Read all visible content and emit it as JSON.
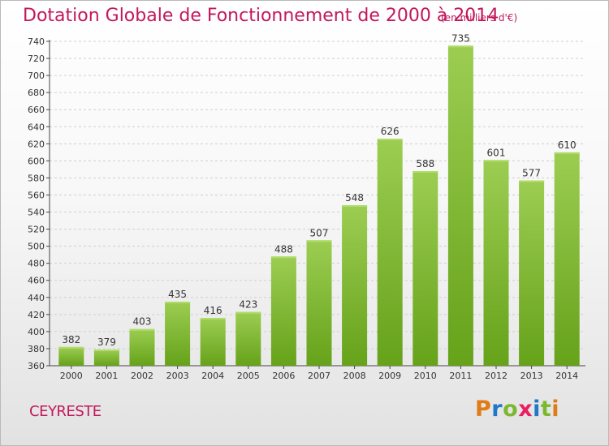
{
  "header": {
    "title": "Dotation Globale de Fonctionnement de 2000 à 2014",
    "unit_note": "(en milliers d'€)"
  },
  "footer": {
    "commune": "CEYRESTE",
    "logo": "Proxiti",
    "logo_colors": [
      "#e07b16",
      "#1f78c8",
      "#7cb82f",
      "#e91e63",
      "#1f78c8",
      "#7cb82f",
      "#e07b16"
    ]
  },
  "colors": {
    "accent": "#c2185b",
    "bar_top": "#9ccd52",
    "bar_bottom": "#66a21a",
    "grid": "#cfcfcf"
  },
  "chart_data": {
    "type": "bar",
    "categories": [
      "2000",
      "2001",
      "2002",
      "2003",
      "2004",
      "2005",
      "2006",
      "2007",
      "2008",
      "2009",
      "2010",
      "2011",
      "2012",
      "2013",
      "2014"
    ],
    "values": [
      382,
      379,
      403,
      435,
      416,
      423,
      488,
      507,
      548,
      626,
      588,
      735,
      601,
      577,
      610
    ],
    "title": "Dotation Globale de Fonctionnement de 2000 à 2014",
    "subtitle": "(en milliers d'€)",
    "xlabel": "",
    "ylabel": "",
    "ylim": [
      360,
      740
    ],
    "yticks": [
      360,
      380,
      400,
      420,
      440,
      460,
      480,
      500,
      520,
      540,
      560,
      580,
      600,
      620,
      640,
      660,
      680,
      700,
      720,
      740
    ],
    "grid": true,
    "legend": "none"
  }
}
